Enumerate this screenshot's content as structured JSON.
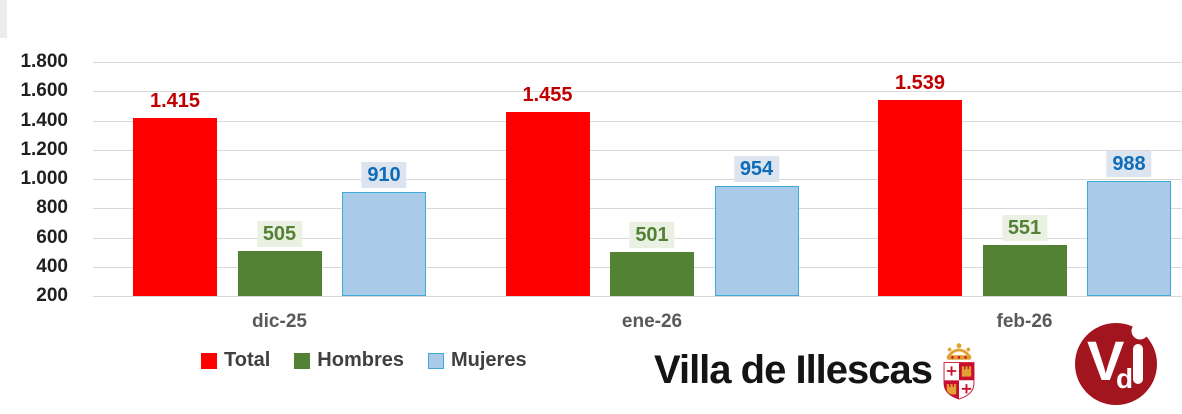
{
  "chart_data": {
    "type": "bar",
    "title": "",
    "categories": [
      "dic-25",
      "ene-26",
      "feb-26"
    ],
    "series": [
      {
        "name": "Total",
        "values": [
          1415,
          1455,
          1539
        ],
        "labels": [
          "1.415",
          "1.455",
          "1.539"
        ],
        "color": "#FF0000",
        "border": "",
        "label_color": "#C00000",
        "label_bg": ""
      },
      {
        "name": "Hombres",
        "values": [
          505,
          501,
          551
        ],
        "labels": [
          "505",
          "501",
          "551"
        ],
        "color": "#548235",
        "border": "",
        "label_color": "#538135",
        "label_bg": "#EAF1E2"
      },
      {
        "name": "Mujeres",
        "values": [
          910,
          954,
          988
        ],
        "labels": [
          "910",
          "954",
          "988"
        ],
        "color": "#A9CBE9",
        "border": "#3FAAD8",
        "label_color": "#0F6CB8",
        "label_bg": "#DCE5EF"
      }
    ],
    "y_axis": {
      "min": 200,
      "max": 1800,
      "step": 200,
      "ticks": [
        {
          "value": 1800,
          "label": "1.800"
        },
        {
          "value": 1600,
          "label": "1.600"
        },
        {
          "value": 1400,
          "label": "1.400"
        },
        {
          "value": 1200,
          "label": "1.200"
        },
        {
          "value": 1000,
          "label": "1.000"
        },
        {
          "value": 800,
          "label": "800"
        },
        {
          "value": 600,
          "label": "600"
        },
        {
          "value": 400,
          "label": "400"
        },
        {
          "value": 200,
          "label": "200"
        }
      ]
    },
    "grid": true,
    "gridline_color": "#D9D9D9",
    "legend_position": "bottom-left",
    "xlabel": "",
    "ylabel": ""
  },
  "branding": {
    "title": "Villa de Illescas",
    "monogram": {
      "v": "V",
      "d": "d",
      "i": "i"
    },
    "logo_color": "#A2151F"
  }
}
